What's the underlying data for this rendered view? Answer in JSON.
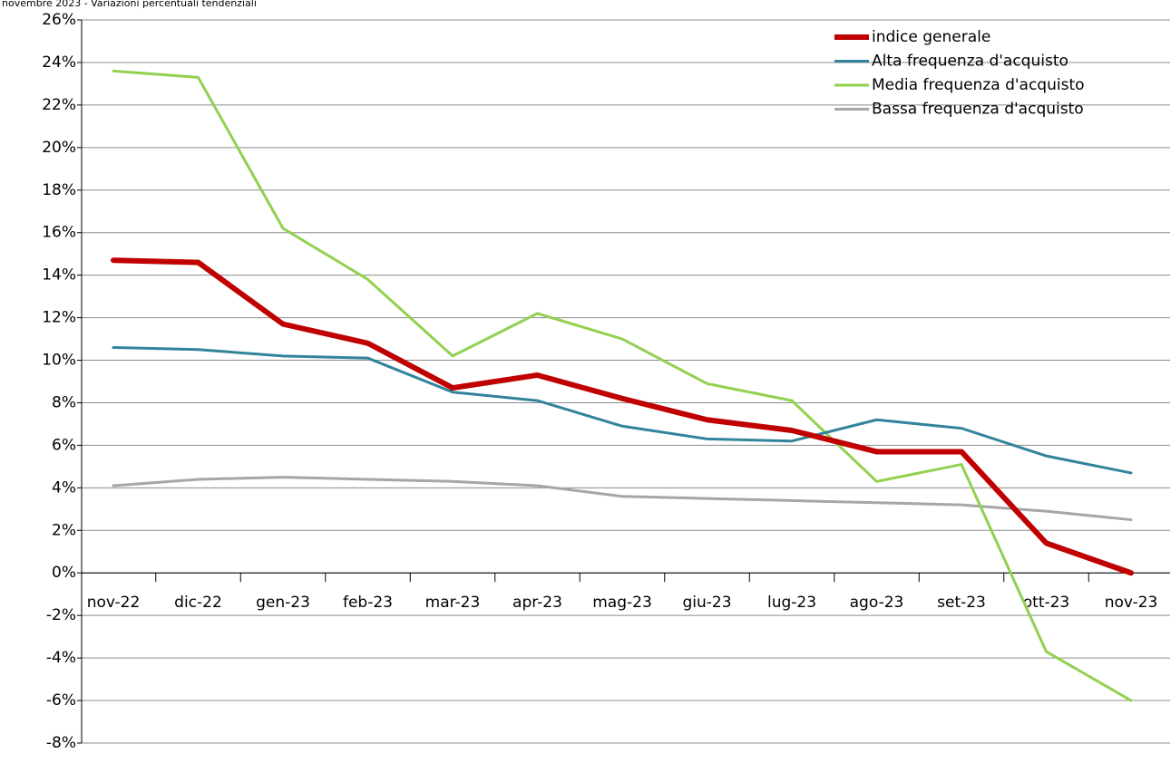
{
  "chart_data": {
    "type": "line",
    "title": "novembre 2023 - Variazioni percentuali tendenziali",
    "categories": [
      "nov-22",
      "dic-22",
      "gen-23",
      "feb-23",
      "mar-23",
      "apr-23",
      "mag-23",
      "giu-23",
      "lug-23",
      "ago-23",
      "set-23",
      "ott-23",
      "nov-23"
    ],
    "series": [
      {
        "name": "indice generale",
        "color": "#c00000",
        "values": [
          14.7,
          14.6,
          11.7,
          10.8,
          8.7,
          9.3,
          8.2,
          7.2,
          6.7,
          5.7,
          5.7,
          1.4,
          0.0
        ]
      },
      {
        "name": "Alta frequenza d'acquisto",
        "color": "#31849b",
        "values": [
          10.6,
          10.5,
          10.2,
          10.1,
          8.5,
          8.1,
          6.9,
          6.3,
          6.2,
          7.2,
          6.8,
          5.5,
          4.7
        ]
      },
      {
        "name": "Media frequenza d'acquisto",
        "color": "#92d050",
        "values": [
          23.6,
          23.3,
          16.2,
          13.8,
          10.2,
          12.2,
          11.0,
          8.9,
          8.1,
          4.3,
          5.1,
          -3.7,
          -6.0
        ]
      },
      {
        "name": "Bassa frequenza d'acquisto",
        "color": "#a6a6a6",
        "values": [
          4.1,
          4.4,
          4.5,
          4.4,
          4.3,
          4.1,
          3.6,
          3.5,
          3.4,
          3.3,
          3.2,
          2.9,
          2.5
        ]
      }
    ],
    "ylim": [
      -8,
      26
    ],
    "yticks": [
      {
        "value": -8,
        "label": "-8%"
      },
      {
        "value": -6,
        "label": "-6%"
      },
      {
        "value": -4,
        "label": "-4%"
      },
      {
        "value": -2,
        "label": "-2%"
      },
      {
        "value": 0,
        "label": "0%"
      },
      {
        "value": 2,
        "label": "2%"
      },
      {
        "value": 4,
        "label": "4%"
      },
      {
        "value": 6,
        "label": "6%"
      },
      {
        "value": 8,
        "label": "8%"
      },
      {
        "value": 10,
        "label": "10%"
      },
      {
        "value": 12,
        "label": "12%"
      },
      {
        "value": 14,
        "label": "14%"
      },
      {
        "value": 16,
        "label": "16%"
      },
      {
        "value": 18,
        "label": "18%"
      },
      {
        "value": 20,
        "label": "20%"
      },
      {
        "value": 22,
        "label": "22%"
      },
      {
        "value": 24,
        "label": "24%"
      },
      {
        "value": 26,
        "label": "26%"
      }
    ],
    "grid": true,
    "legend": "upper right"
  }
}
